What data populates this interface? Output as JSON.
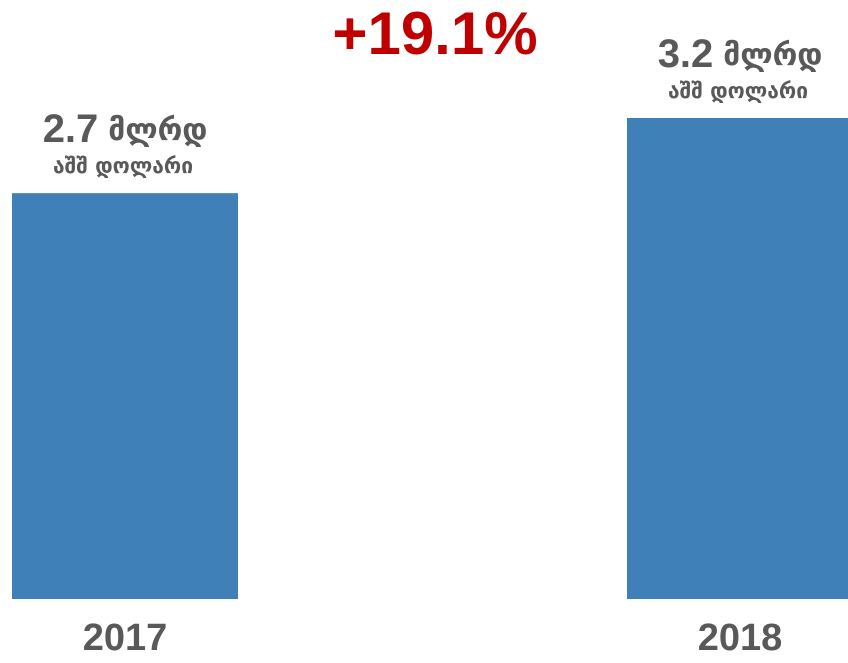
{
  "chart_data": {
    "type": "bar",
    "annotation": "+19.1%",
    "categories": [
      "2017",
      "2018"
    ],
    "values": [
      2.7,
      3.2
    ],
    "value_unit": "მლრდ",
    "value_unit_sub": "აშშ დოლარი",
    "color": "#4080b9",
    "annotation_color": "#c00000",
    "label_color": "#595959"
  }
}
